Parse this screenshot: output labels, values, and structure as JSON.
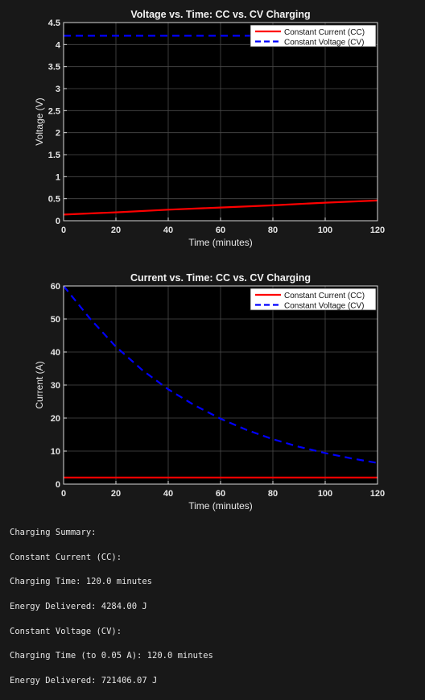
{
  "chart_data": [
    {
      "type": "line",
      "title": "Voltage vs. Time: CC vs. CV Charging",
      "xlabel": "Time (minutes)",
      "ylabel": "Voltage (V)",
      "xlim": [
        0,
        120
      ],
      "ylim": [
        0,
        4.5
      ],
      "xticks": [
        "0",
        "20",
        "40",
        "60",
        "80",
        "100",
        "120"
      ],
      "yticks": [
        "0",
        "0.5",
        "1",
        "1.5",
        "2",
        "2.5",
        "3",
        "3.5",
        "4",
        "4.5"
      ],
      "grid": true,
      "legend_position": "top-right",
      "series": [
        {
          "name": "Constant Current (CC)",
          "color": "#ff0000",
          "style": "solid",
          "x": [
            0,
            20,
            40,
            60,
            80,
            100,
            120
          ],
          "y": [
            0.14,
            0.19,
            0.25,
            0.3,
            0.35,
            0.41,
            0.46
          ]
        },
        {
          "name": "Constant Voltage (CV)",
          "color": "#0000ff",
          "style": "dashed",
          "x": [
            0,
            20,
            40,
            60,
            80,
            100,
            120
          ],
          "y": [
            4.2,
            4.2,
            4.2,
            4.2,
            4.2,
            4.2,
            4.2
          ]
        }
      ]
    },
    {
      "type": "line",
      "title": "Current vs. Time: CC vs. CV Charging",
      "xlabel": "Time (minutes)",
      "ylabel": "Current (A)",
      "xlim": [
        0,
        120
      ],
      "ylim": [
        0,
        60
      ],
      "xticks": [
        "0",
        "20",
        "40",
        "60",
        "80",
        "100",
        "120"
      ],
      "yticks": [
        "0",
        "10",
        "20",
        "30",
        "40",
        "50",
        "60"
      ],
      "grid": true,
      "legend_position": "top-right",
      "series": [
        {
          "name": "Constant Current (CC)",
          "color": "#ff0000",
          "style": "solid",
          "x": [
            0,
            20,
            40,
            60,
            80,
            100,
            120
          ],
          "y": [
            2,
            2,
            2,
            2,
            2,
            2,
            2
          ]
        },
        {
          "name": "Constant Voltage (CV)",
          "color": "#0000ff",
          "style": "dashed",
          "x": [
            0,
            10,
            20,
            30,
            40,
            50,
            60,
            70,
            80,
            90,
            100,
            110,
            120
          ],
          "y": [
            60,
            50.2,
            41.6,
            34.6,
            28.7,
            23.9,
            19.8,
            16.4,
            13.6,
            11.3,
            9.4,
            7.8,
            6.4
          ]
        }
      ]
    }
  ],
  "summary": {
    "heading": "Charging Summary:",
    "cc_heading": "Constant Current (CC):",
    "cc_time": "Charging Time: 120.0 minutes",
    "cc_energy": "Energy Delivered: 4284.00 J",
    "cv_heading": "Constant Voltage (CV):",
    "cv_time": "Charging Time (to 0.05 A): 120.0 minutes",
    "cv_energy": "Energy Delivered: 721406.07 J"
  }
}
